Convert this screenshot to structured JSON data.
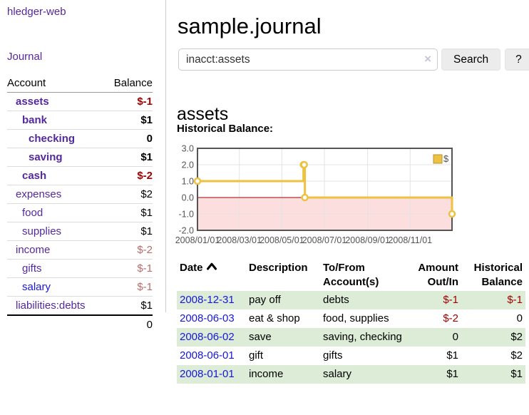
{
  "colors": {
    "link_purple": "#54289e",
    "link_blue": "#1616dd",
    "negative_strong": "#a40000",
    "negative_muted": "#b96c6c",
    "row_stripe_green": "#dcecd7",
    "series_gold": "#edc240",
    "negative_region_pink": "#fcdede",
    "zero_line_red": "#a00000",
    "chart_frame_gray": "#545454",
    "button_gray": "#ececec"
  },
  "sidebar": {
    "app_title": "hledger-web",
    "journal_link": "Journal",
    "accounts": {
      "col_account": "Account",
      "col_balance": "Balance",
      "rows": [
        {
          "name": "assets",
          "balance": "$-1",
          "row_class": "ind1 sel",
          "bal_class": "neg-strong"
        },
        {
          "name": "bank",
          "balance": "$1",
          "row_class": "ind2 sel",
          "bal_class": ""
        },
        {
          "name": "checking",
          "balance": "0",
          "row_class": "ind3 sel",
          "bal_class": ""
        },
        {
          "name": "saving",
          "balance": "$1",
          "row_class": "ind3 sel",
          "bal_class": ""
        },
        {
          "name": "cash",
          "balance": "$-2",
          "row_class": "ind2 sel",
          "bal_class": "neg-strong"
        },
        {
          "name": "expenses",
          "balance": "$2",
          "row_class": "ind1",
          "bal_class": ""
        },
        {
          "name": "food",
          "balance": "$1",
          "row_class": "ind2",
          "bal_class": ""
        },
        {
          "name": "supplies",
          "balance": "$1",
          "row_class": "ind2",
          "bal_class": ""
        },
        {
          "name": "income",
          "balance": "$-2",
          "row_class": "ind1",
          "bal_class": "neg-muted"
        },
        {
          "name": "gifts",
          "balance": "$-1",
          "row_class": "ind2",
          "bal_class": "neg-muted"
        },
        {
          "name": "salary",
          "balance": "$-1",
          "row_class": "ind2 blue",
          "bal_class": "neg-muted"
        },
        {
          "name": "liabilities:debts",
          "balance": "$1",
          "row_class": "ind1",
          "bal_class": ""
        }
      ],
      "total": "0"
    }
  },
  "main": {
    "title": "sample.journal",
    "search": {
      "value": "inacct:assets",
      "clear_icon": "×",
      "search_button": "Search",
      "help_button": "?"
    },
    "account_heading": "assets",
    "chart_title": "Historical Balance:",
    "register": {
      "headers": {
        "date": "Date",
        "description": "Description",
        "accounts": "To/From Account(s)",
        "amount": "Amount Out/In",
        "balance": "Historical Balance"
      },
      "rows": [
        {
          "date": "2008-12-31",
          "description": "pay off",
          "accounts": "debts",
          "amount": "$-1",
          "amount_class": "neg",
          "balance": "$-1",
          "bal_class": "neg",
          "row_class": "striped"
        },
        {
          "date": "2008-06-03",
          "description": "eat & shop",
          "accounts": "food, supplies",
          "amount": "$-2",
          "amount_class": "neg",
          "balance": "0",
          "bal_class": "",
          "row_class": ""
        },
        {
          "date": "2008-06-02",
          "description": "save",
          "accounts": "saving, checking",
          "amount": "0",
          "amount_class": "",
          "balance": "$2",
          "bal_class": "",
          "row_class": "striped"
        },
        {
          "date": "2008-06-01",
          "description": "gift",
          "accounts": "gifts",
          "amount": "$1",
          "amount_class": "",
          "balance": "$2",
          "bal_class": "",
          "row_class": ""
        },
        {
          "date": "2008-01-01",
          "description": "income",
          "accounts": "salary",
          "amount": "$1",
          "amount_class": "",
          "balance": "$1",
          "bal_class": "",
          "row_class": "striped"
        }
      ]
    }
  },
  "chart_data": {
    "type": "line",
    "step": true,
    "title": "Historical Balance:",
    "series": [
      {
        "name": "$",
        "color": "#edc240",
        "points": [
          [
            "2008-01-01",
            1
          ],
          [
            "2008-06-01",
            2
          ],
          [
            "2008-06-02",
            2
          ],
          [
            "2008-06-03",
            0
          ],
          [
            "2008-12-31",
            -1
          ]
        ]
      }
    ],
    "x_range": [
      "2008-01-01",
      "2008-12-31"
    ],
    "x_tick_labels": [
      "2008/01/01",
      "2008/03/01",
      "2008/05/01",
      "2008/07/01",
      "2008/09/01",
      "2008/11/01"
    ],
    "y_tick_labels": [
      "3.0",
      "2.0",
      "1.0",
      "0.0",
      "-1.0",
      "-2.0"
    ],
    "ylim": [
      -2,
      3
    ],
    "legend": {
      "label": "$",
      "position": "top-right"
    },
    "grid": true
  }
}
